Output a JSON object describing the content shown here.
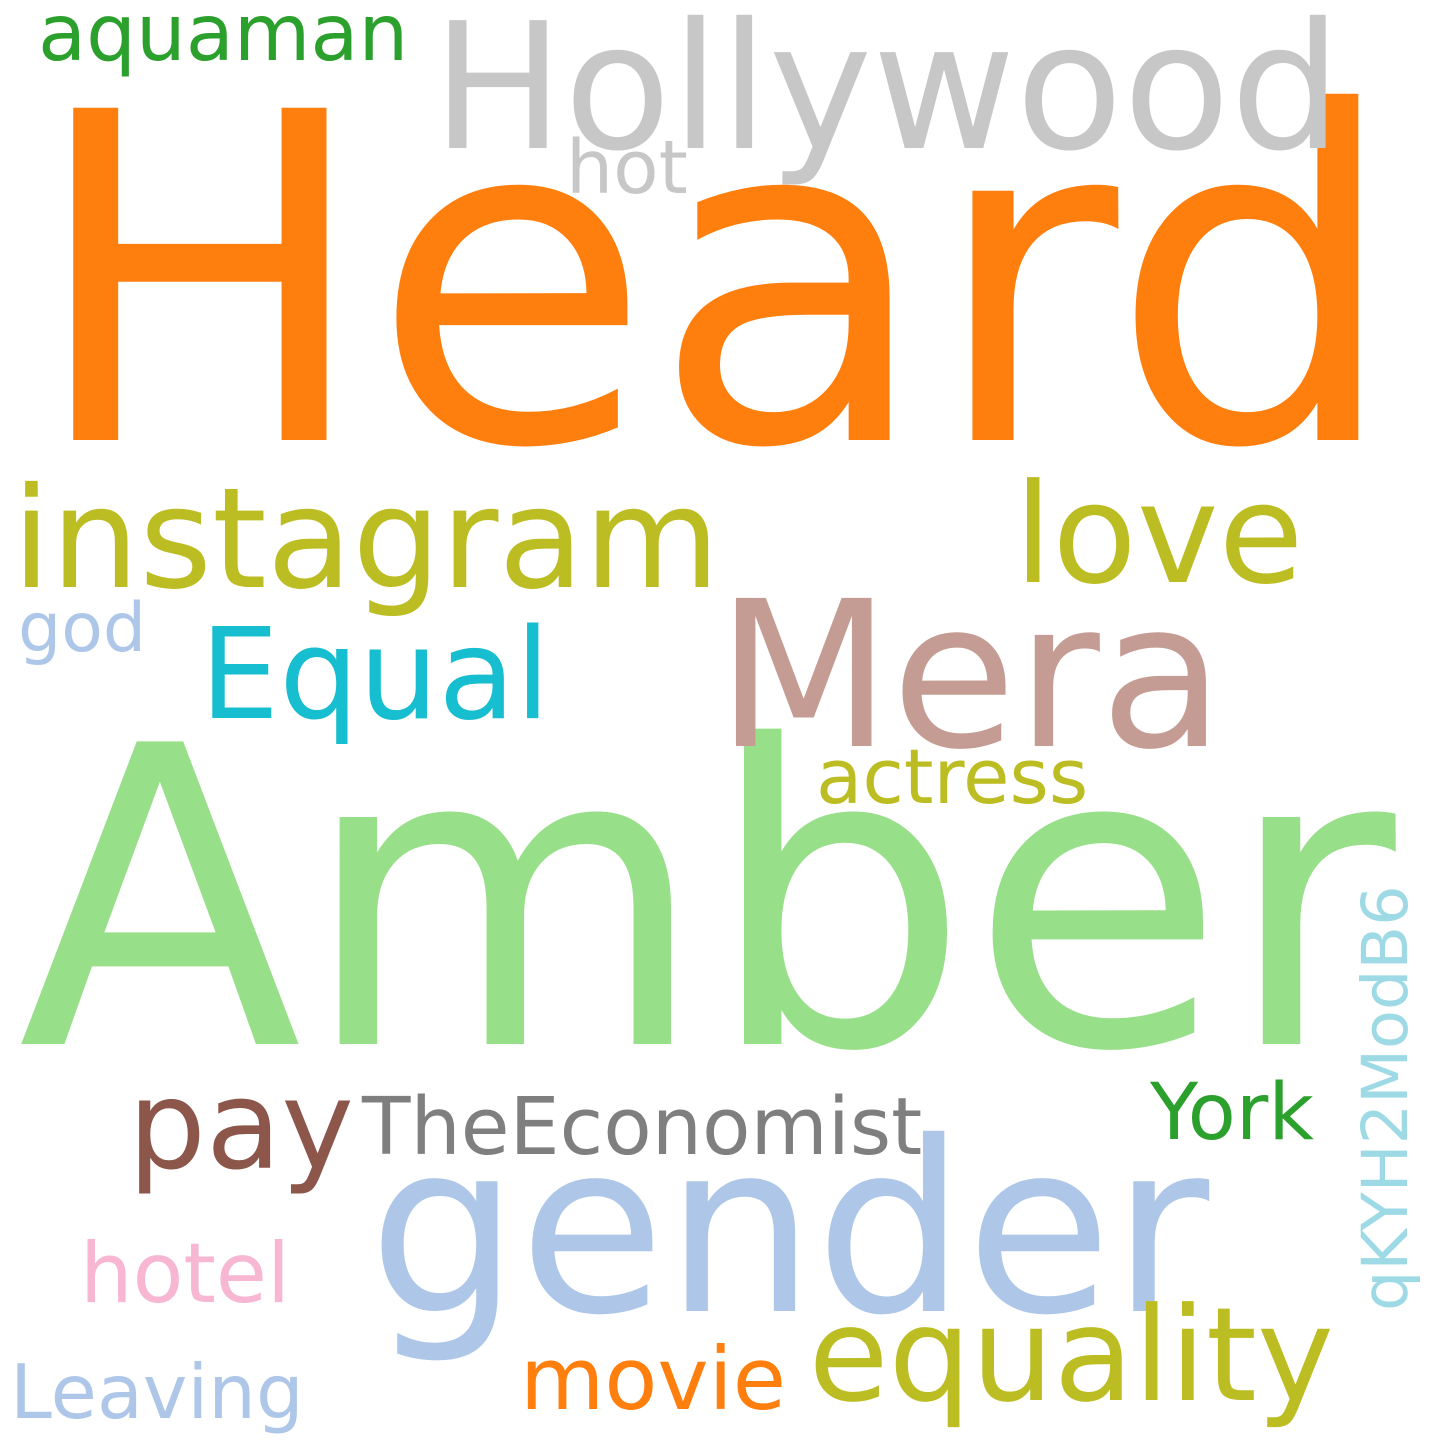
{
  "words": [
    {
      "text": "Heard",
      "color": "#ff7f0e"
    },
    {
      "text": "Amber",
      "color": "#98df8a"
    },
    {
      "text": "gender",
      "color": "#aec7e8"
    },
    {
      "text": "Hollywood",
      "color": "#c7c7c7"
    },
    {
      "text": "Mera",
      "color": "#c49c94"
    },
    {
      "text": "instagram",
      "color": "#bcbd22"
    },
    {
      "text": "love",
      "color": "#bcbd22"
    },
    {
      "text": "Equal",
      "color": "#17becf"
    },
    {
      "text": "pay",
      "color": "#8c564b"
    },
    {
      "text": "TheEconomist",
      "color": "#7f7f7f"
    },
    {
      "text": "equality",
      "color": "#bcbd22"
    },
    {
      "text": "aquaman",
      "color": "#2ca02c"
    },
    {
      "text": "actress",
      "color": "#bcbd22"
    },
    {
      "text": "qKYH2ModB6",
      "color": "#9edae5"
    },
    {
      "text": "York",
      "color": "#2ca02c"
    },
    {
      "text": "movie",
      "color": "#ff7f0e"
    },
    {
      "text": "hotel",
      "color": "#f7b6d2"
    },
    {
      "text": "Leaving",
      "color": "#aec7e8"
    },
    {
      "text": "hot",
      "color": "#c7c7c7"
    },
    {
      "text": "god",
      "color": "#aec7e8"
    }
  ]
}
